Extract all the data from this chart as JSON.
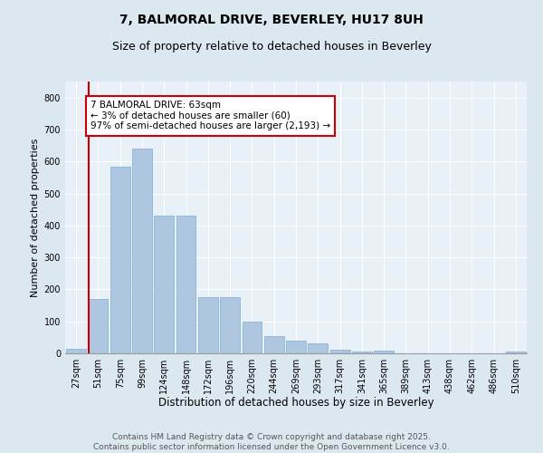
{
  "title1": "7, BALMORAL DRIVE, BEVERLEY, HU17 8UH",
  "title2": "Size of property relative to detached houses in Beverley",
  "xlabel": "Distribution of detached houses by size in Beverley",
  "ylabel": "Number of detached properties",
  "categories": [
    "27sqm",
    "51sqm",
    "75sqm",
    "99sqm",
    "124sqm",
    "148sqm",
    "172sqm",
    "196sqm",
    "220sqm",
    "244sqm",
    "269sqm",
    "293sqm",
    "317sqm",
    "341sqm",
    "365sqm",
    "389sqm",
    "413sqm",
    "438sqm",
    "462sqm",
    "486sqm",
    "510sqm"
  ],
  "values": [
    15,
    170,
    585,
    640,
    430,
    430,
    175,
    175,
    100,
    55,
    40,
    30,
    10,
    5,
    8,
    0,
    0,
    0,
    0,
    0,
    5
  ],
  "bar_color": "#aec6e0",
  "bar_edge_color": "#7aadd4",
  "vline_color": "#cc0000",
  "annotation_text": "7 BALMORAL DRIVE: 63sqm\n← 3% of detached houses are smaller (60)\n97% of semi-detached houses are larger (2,193) →",
  "annotation_box_color": "#ffffff",
  "annotation_box_edge": "#cc0000",
  "ylim": [
    0,
    850
  ],
  "yticks": [
    0,
    100,
    200,
    300,
    400,
    500,
    600,
    700,
    800
  ],
  "bg_color": "#dce8f0",
  "plot_bg_color": "#e8f0f8",
  "footer_text": "Contains HM Land Registry data © Crown copyright and database right 2025.\nContains public sector information licensed under the Open Government Licence v3.0.",
  "title1_fontsize": 10,
  "title2_fontsize": 9,
  "xlabel_fontsize": 8.5,
  "ylabel_fontsize": 8,
  "tick_fontsize": 7,
  "annotation_fontsize": 7.5,
  "footer_fontsize": 6.5
}
